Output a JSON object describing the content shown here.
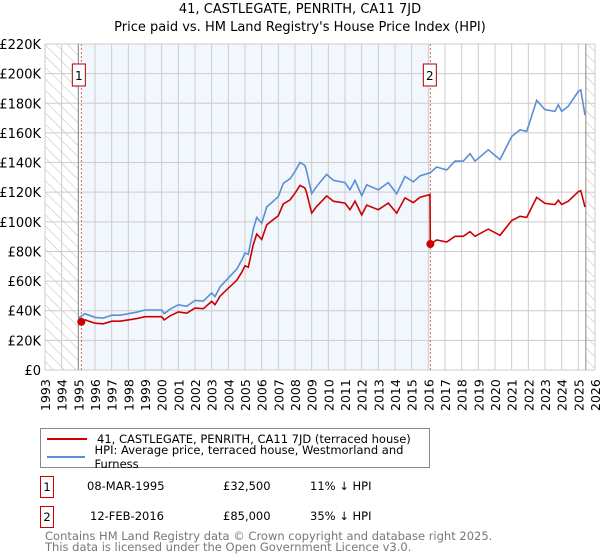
{
  "chart_data": {
    "type": "line",
    "title": "41, CASTLEGATE, PENRITH, CA11 7JD",
    "subtitle": "Price paid vs. HM Land Registry's House Price Index (HPI)",
    "xlabel": "",
    "ylabel": "",
    "xlim": [
      1993,
      2026
    ],
    "ylim": [
      0,
      220000
    ],
    "y_ticks": [
      0,
      20000,
      40000,
      60000,
      80000,
      100000,
      120000,
      140000,
      160000,
      180000,
      200000,
      220000
    ],
    "y_tick_labels": [
      "£0",
      "£20K",
      "£40K",
      "£60K",
      "£80K",
      "£100K",
      "£120K",
      "£140K",
      "£160K",
      "£180K",
      "£200K",
      "£220K"
    ],
    "x_ticks": [
      "1993",
      "1994",
      "1995",
      "1996",
      "1997",
      "1998",
      "1999",
      "2000",
      "2001",
      "2002",
      "2003",
      "2004",
      "2005",
      "2006",
      "2007",
      "2008",
      "2009",
      "2010",
      "2011",
      "2012",
      "2013",
      "2014",
      "2015",
      "2016",
      "2017",
      "2018",
      "2019",
      "2020",
      "2021",
      "2022",
      "2023",
      "2024",
      "2025",
      "2026"
    ],
    "grid": true,
    "legend_position": "bottom",
    "series": [
      {
        "name": "41, CASTLEGATE, PENRITH, CA11 7JD (terraced house)",
        "color": "#cc0000",
        "x": [
          1995.18,
          1995.4,
          1996.0,
          1996.5,
          1997,
          1997.5,
          1998,
          1998.5,
          1999,
          1999.5,
          2000,
          2000.15,
          2000.5,
          2001,
          2001.5,
          2002,
          2002.5,
          2003,
          2003.2,
          2003.5,
          2004,
          2004.5,
          2004.8,
          2005,
          2005.2,
          2005.5,
          2005.7,
          2006,
          2006.3,
          2006.6,
          2007,
          2007.3,
          2007.7,
          2008,
          2008.3,
          2008.6,
          2008.7,
          2009,
          2009.3,
          2009.6,
          2009.9,
          2010.3,
          2011,
          2011.3,
          2011.6,
          2012,
          2012.3,
          2013,
          2013.6,
          2014.1,
          2014.6,
          2015.1,
          2015.5,
          2016.1,
          2016.12,
          2016.5,
          2017.1,
          2017.6,
          2018.1,
          2018.5,
          2018.8,
          2019.6,
          2020.3,
          2021,
          2021.5,
          2021.9,
          2022.5,
          2023,
          2023.6,
          2023.8,
          2024,
          2024.4,
          2025,
          2025.15,
          2025.4
        ],
        "y": [
          32500,
          33800,
          31600,
          31200,
          32900,
          32900,
          33800,
          34700,
          36000,
          36000,
          36000,
          33800,
          36500,
          39200,
          38300,
          41800,
          41400,
          46300,
          44100,
          49800,
          55200,
          60500,
          65900,
          70300,
          69400,
          84600,
          91700,
          88100,
          97900,
          100600,
          104100,
          112100,
          114800,
          119300,
          124600,
          122800,
          119300,
          105900,
          110400,
          113900,
          117500,
          113900,
          112600,
          108200,
          113900,
          104700,
          111300,
          108200,
          112600,
          105900,
          116200,
          113000,
          116600,
          118400,
          85000,
          87700,
          86400,
          90200,
          90200,
          93400,
          90200,
          95100,
          90900,
          100900,
          103700,
          103000,
          116500,
          112400,
          111700,
          114600,
          111700,
          113900,
          120300,
          121000,
          110000
        ]
      },
      {
        "name": "HPI: Average price, terraced house, Westmorland and Furness",
        "color": "#5b8fd4",
        "x": [
          1995.0,
          1995.2,
          1995.4,
          1996.0,
          1996.5,
          1997,
          1997.5,
          1998,
          1998.5,
          1999,
          1999.5,
          2000,
          2000.15,
          2000.5,
          2001,
          2001.5,
          2002,
          2002.5,
          2003,
          2003.2,
          2003.5,
          2004,
          2004.5,
          2004.8,
          2005,
          2005.2,
          2005.5,
          2005.7,
          2006,
          2006.3,
          2006.6,
          2007,
          2007.3,
          2007.7,
          2008,
          2008.3,
          2008.6,
          2008.7,
          2009,
          2009.3,
          2009.6,
          2009.9,
          2010.3,
          2011,
          2011.3,
          2011.6,
          2012,
          2012.3,
          2013,
          2013.6,
          2014.1,
          2014.6,
          2015.1,
          2015.5,
          2016.1,
          2016.5,
          2017.1,
          2017.6,
          2018.1,
          2018.5,
          2018.8,
          2019.6,
          2020.3,
          2021,
          2021.5,
          2021.9,
          2022.5,
          2023,
          2023.6,
          2023.8,
          2024,
          2024.4,
          2025,
          2025.15,
          2025.4
        ],
        "y": [
          35000,
          36500,
          38000,
          35500,
          35000,
          37000,
          37000,
          38000,
          39000,
          40500,
          40500,
          40500,
          38000,
          41000,
          44000,
          43000,
          47000,
          46500,
          52000,
          49500,
          56000,
          62000,
          68000,
          74000,
          79000,
          78000,
          95000,
          103000,
          99000,
          110000,
          113000,
          117000,
          126000,
          129000,
          134000,
          140000,
          138000,
          134000,
          119000,
          124000,
          128000,
          132000,
          128000,
          126500,
          121600,
          128000,
          117600,
          125000,
          121600,
          126500,
          119000,
          130600,
          127000,
          131000,
          133000,
          137000,
          135000,
          141000,
          141000,
          146000,
          141000,
          148600,
          142000,
          157600,
          162000,
          161000,
          182000,
          175700,
          174500,
          179000,
          174500,
          178000,
          188000,
          189000,
          172000
        ]
      }
    ],
    "annotations": [
      {
        "label": "1",
        "x": 1995.18,
        "y": 32500
      },
      {
        "label": "2",
        "x": 2016.12,
        "y": 85000
      }
    ],
    "hatched_ranges": [
      [
        1993,
        1995
      ],
      [
        2025.45,
        2026
      ]
    ],
    "shaded_range": [
      1995.18,
      2016.12
    ]
  },
  "transactions": [
    {
      "num": "1",
      "date": "08-MAR-1995",
      "price": "£32,500",
      "hpi": "11% ↓ HPI"
    },
    {
      "num": "2",
      "date": "12-FEB-2016",
      "price": "£85,000",
      "hpi": "35% ↓ HPI"
    }
  ],
  "footer": {
    "line1": "Contains HM Land Registry data © Crown copyright and database right 2025.",
    "line2": "This data is licensed under the Open Government Licence v3.0."
  }
}
